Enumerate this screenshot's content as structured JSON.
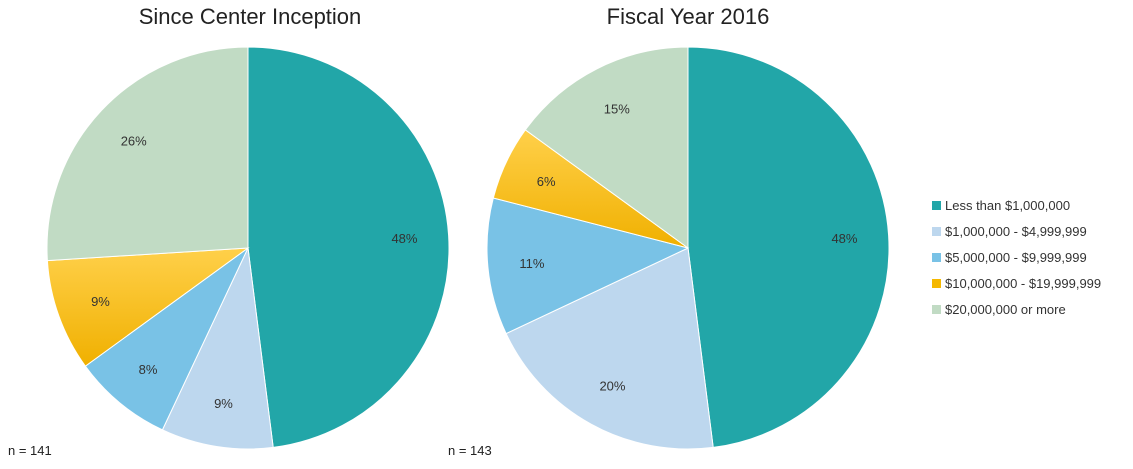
{
  "chart_data": [
    {
      "type": "pie",
      "title": "Since Center Inception",
      "n_label": "n = 141",
      "categories": [
        "Less than $1,000,000",
        "$1,000,000 - $4,999,999",
        "$5,000,000 - $9,999,999",
        "$10,000,000 - $19,999,999",
        "$20,000,000 or more"
      ],
      "values": [
        48,
        9,
        8,
        9,
        26
      ],
      "labels": [
        "48%",
        "9%",
        "8%",
        "9%",
        "26%"
      ]
    },
    {
      "type": "pie",
      "title": "Fiscal Year 2016",
      "n_label": "n = 143",
      "categories": [
        "Less than $1,000,000",
        "$1,000,000 - $4,999,999",
        "$5,000,000 - $9,999,999",
        "$10,000,000 - $19,999,999",
        "$20,000,000 or more"
      ],
      "values": [
        48,
        20,
        11,
        6,
        15
      ],
      "labels": [
        "48%",
        "20%",
        "11%",
        "6%",
        "15%"
      ]
    }
  ],
  "legend": {
    "placement": "right",
    "items": [
      {
        "label": "Less than $1,000,000",
        "color": "#22a6a8"
      },
      {
        "label": "$1,000,000 - $4,999,999",
        "color": "#bdd7ee"
      },
      {
        "label": "$5,000,000 - $9,999,999",
        "color": "#79c2e6"
      },
      {
        "label": "$10,000,000 - $19,999,999",
        "color": "#f5b800"
      },
      {
        "label": "$20,000,000 or more",
        "color": "#c1dbc4"
      }
    ]
  }
}
